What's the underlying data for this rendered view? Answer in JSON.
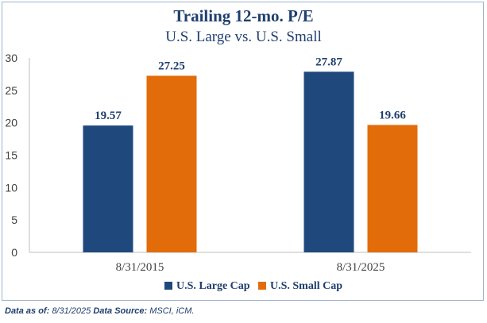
{
  "chart_data": {
    "type": "bar",
    "title": "Trailing 12-mo. P/E",
    "subtitle": "U.S. Large vs. U.S. Small",
    "categories": [
      "8/31/2015",
      "8/31/2025"
    ],
    "series": [
      {
        "name": "U.S. Large Cap",
        "values": [
          19.57,
          27.87
        ],
        "color": "#1f497d"
      },
      {
        "name": "U.S. Small Cap",
        "values": [
          27.25,
          19.66
        ],
        "color": "#e36c0a"
      }
    ],
    "data_labels": [
      [
        "19.57",
        "27.87"
      ],
      [
        "27.25",
        "19.66"
      ]
    ],
    "ylim": [
      0,
      30
    ],
    "yticks": [
      0,
      5,
      10,
      15,
      20,
      25,
      30
    ],
    "legend": "bottom",
    "grid": false
  },
  "footer": {
    "as_of_label": "Data as of:",
    "as_of_value": "8/31/2025",
    "source_label": "Data Source:",
    "source_value": "MSCI, iCM."
  }
}
